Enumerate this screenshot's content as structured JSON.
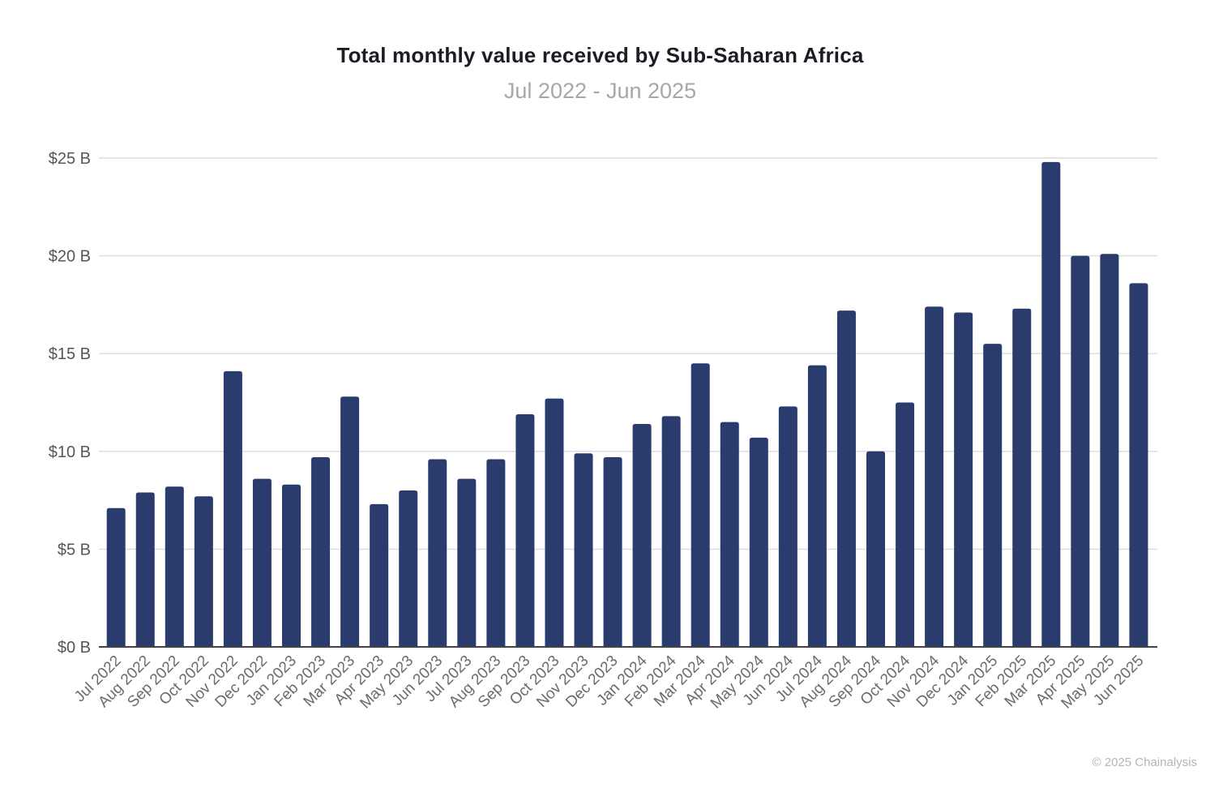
{
  "page": {
    "footer": "© 2025 Chainalysis"
  },
  "chart_data": {
    "type": "bar",
    "title": "Total monthly value received by Sub-Saharan Africa",
    "subtitle": "Jul 2022 - Jun 2025",
    "unit": "USD billions",
    "xlabel": "",
    "ylabel": "",
    "ylim": [
      0,
      25
    ],
    "yticks": [
      0,
      5,
      10,
      15,
      20,
      25
    ],
    "ytick_labels": [
      "$0 B",
      "$5 B",
      "$10 B",
      "$15 B",
      "$20 B",
      "$25 B"
    ],
    "grid": true,
    "legend": false,
    "categories": [
      "Jul 2022",
      "Aug 2022",
      "Sep 2022",
      "Oct 2022",
      "Nov 2022",
      "Dec 2022",
      "Jan 2023",
      "Feb 2023",
      "Mar 2023",
      "Apr 2023",
      "May 2023",
      "Jun 2023",
      "Jul 2023",
      "Aug 2023",
      "Sep 2023",
      "Oct 2023",
      "Nov 2023",
      "Dec 2023",
      "Jan 2024",
      "Feb 2024",
      "Mar 2024",
      "Apr 2024",
      "May 2024",
      "Jun 2024",
      "Jul 2024",
      "Aug 2024",
      "Sep 2024",
      "Oct 2024",
      "Nov 2024",
      "Dec 2024",
      "Jan 2025",
      "Feb 2025",
      "Mar 2025",
      "Apr 2025",
      "May 2025",
      "Jun 2025"
    ],
    "values": [
      7.1,
      7.9,
      8.2,
      7.7,
      14.1,
      8.6,
      8.3,
      9.7,
      12.8,
      7.3,
      8.0,
      9.6,
      8.6,
      9.6,
      11.9,
      12.7,
      9.9,
      9.7,
      11.4,
      11.8,
      14.5,
      11.5,
      10.7,
      12.3,
      14.4,
      17.2,
      10.0,
      12.5,
      17.4,
      17.1,
      15.5,
      17.3,
      24.8,
      20.0,
      20.1,
      18.6
    ],
    "style": {
      "bar_color": "#2a3c6e",
      "grid_color": "#dadbdc",
      "axis_line_color": "#414347",
      "ytick_label_color": "#55565a",
      "xtick_label_color": "#6a6b6e",
      "title_color": "#1b1d24",
      "subtitle_color": "#a5a7aa",
      "background": "#ffffff"
    }
  }
}
